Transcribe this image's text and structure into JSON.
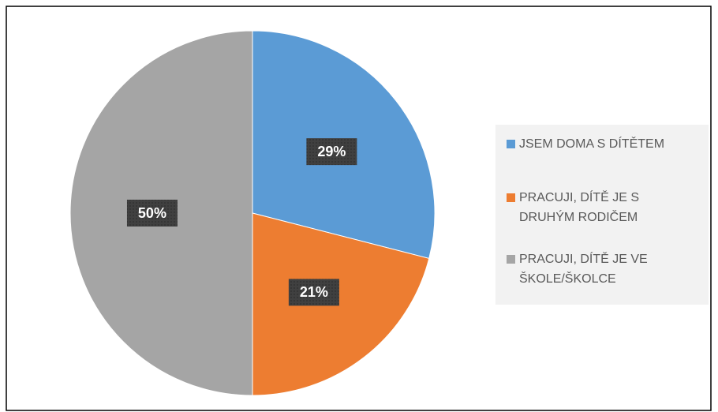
{
  "chart_data": {
    "type": "pie",
    "categories": [
      "JSEM DOMA S DÍTĚTEM",
      "PRACUJI, DÍTĚ JE S DRUHÝM RODIČEM",
      "PRACUJI, DÍTĚ JE VE ŠKOLE/ŠKOLCE"
    ],
    "values": [
      29,
      21,
      50
    ],
    "value_labels": [
      "29%",
      "21%",
      "50%"
    ],
    "colors": [
      "#5b9bd5",
      "#ed7d31",
      "#a5a5a5"
    ],
    "legend": "right"
  }
}
